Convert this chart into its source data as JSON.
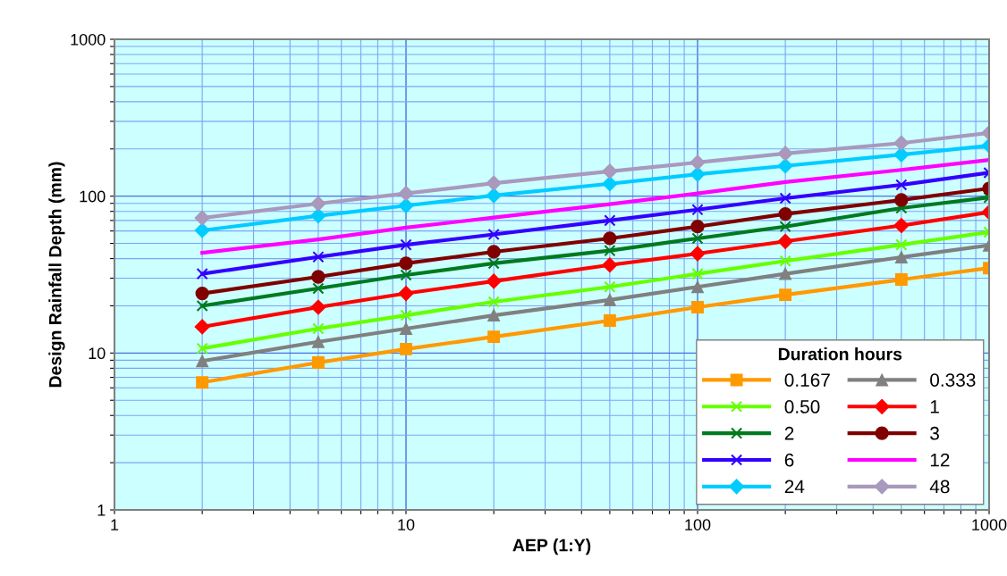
{
  "chart_data": {
    "type": "line",
    "xlabel": "AEP (1:Y)",
    "ylabel": "Design Rainfall Depth (mm)",
    "legend_title": "Duration hours",
    "x": [
      2,
      5,
      10,
      20,
      50,
      100,
      200,
      500,
      1000
    ],
    "series": [
      {
        "name": "0.167",
        "color": "#ff9900",
        "marker": "square",
        "values": [
          6.5,
          8.7,
          10.6,
          12.7,
          16.1,
          19.6,
          23.5,
          29.4,
          34.8
        ]
      },
      {
        "name": "0.333",
        "color": "#808080",
        "marker": "triangle",
        "values": [
          8.9,
          11.8,
          14.3,
          17.4,
          21.8,
          26.4,
          32,
          40.8,
          48.6
        ]
      },
      {
        "name": "0.50",
        "color": "#66ff00",
        "marker": "cross",
        "values": [
          10.7,
          14.3,
          17.4,
          21.2,
          26.4,
          32,
          38.6,
          49,
          59
        ]
      },
      {
        "name": "1",
        "color": "#ff0000",
        "marker": "diamond",
        "values": [
          14.7,
          19.6,
          24,
          28.7,
          36.4,
          43,
          51.5,
          65,
          79
        ]
      },
      {
        "name": "2",
        "color": "#007a1f",
        "marker": "cross",
        "values": [
          20,
          25.8,
          31.4,
          37.3,
          45,
          53.8,
          64,
          84,
          98
        ]
      },
      {
        "name": "3",
        "color": "#800000",
        "marker": "circle",
        "values": [
          24,
          30.6,
          37.3,
          44.2,
          53.8,
          64,
          77,
          94.5,
          112
        ]
      },
      {
        "name": "6",
        "color": "#3300ff",
        "marker": "cross",
        "values": [
          32,
          41,
          49,
          57,
          70,
          82,
          97,
          118,
          141
        ]
      },
      {
        "name": "12",
        "color": "#ff00ff",
        "marker": "none",
        "values": [
          43.5,
          53,
          63,
          73,
          89,
          104,
          123,
          147,
          170
        ]
      },
      {
        "name": "24",
        "color": "#00ccff",
        "marker": "diamond",
        "values": [
          60.5,
          75,
          87,
          101,
          120,
          138,
          156,
          184,
          210
        ]
      },
      {
        "name": "48",
        "color": "#a899bd",
        "marker": "diamond",
        "values": [
          72.6,
          89.6,
          104,
          121,
          144,
          164,
          187,
          218,
          253
        ]
      }
    ],
    "log": "xy",
    "xlim": [
      1,
      1000
    ],
    "ylim": [
      1,
      1000
    ],
    "xticks": [
      1,
      {
        "value": 2,
        "label": null
      },
      {
        "value": 3,
        "label": null
      },
      {
        "value": 4,
        "label": null
      },
      {
        "value": 5,
        "label": null
      },
      {
        "value": 6,
        "label": null
      },
      {
        "value": 7,
        "label": null
      },
      {
        "value": 8,
        "label": null
      },
      {
        "value": 9,
        "label": null
      },
      10,
      {
        "value": 20,
        "label": null
      },
      {
        "value": 30,
        "label": null
      },
      {
        "value": 40,
        "label": null
      },
      {
        "value": 50,
        "label": null
      },
      {
        "value": 60,
        "label": null
      },
      {
        "value": 70,
        "label": null
      },
      {
        "value": 80,
        "label": null
      },
      {
        "value": 90,
        "label": null
      },
      100,
      {
        "value": 200,
        "label": null
      },
      {
        "value": 300,
        "label": null
      },
      {
        "value": 400,
        "label": null
      },
      {
        "value": 500,
        "label": null
      },
      {
        "value": 600,
        "label": null
      },
      {
        "value": 700,
        "label": null
      },
      {
        "value": 800,
        "label": null
      },
      {
        "value": 900,
        "label": null
      },
      1000
    ],
    "yticks": [
      1,
      {
        "value": 2,
        "label": null
      },
      {
        "value": 3,
        "label": null
      },
      {
        "value": 4,
        "label": null
      },
      {
        "value": 5,
        "label": null
      },
      {
        "value": 6,
        "label": null
      },
      {
        "value": 7,
        "label": null
      },
      {
        "value": 8,
        "label": null
      },
      {
        "value": 9,
        "label": null
      },
      10,
      {
        "value": 20,
        "label": null
      },
      {
        "value": 30,
        "label": null
      },
      {
        "value": 40,
        "label": null
      },
      {
        "value": 50,
        "label": null
      },
      {
        "value": 60,
        "label": null
      },
      {
        "value": 70,
        "label": null
      },
      {
        "value": 80,
        "label": null
      },
      {
        "value": 90,
        "label": null
      },
      100,
      {
        "value": 200,
        "label": null
      },
      {
        "value": 300,
        "label": null
      },
      {
        "value": 400,
        "label": null
      },
      {
        "value": 500,
        "label": null
      },
      {
        "value": 600,
        "label": null
      },
      {
        "value": 700,
        "label": null
      },
      {
        "value": 800,
        "label": null
      },
      {
        "value": 900,
        "label": null
      },
      1000
    ],
    "grid": true,
    "legend": "bottom right"
  }
}
